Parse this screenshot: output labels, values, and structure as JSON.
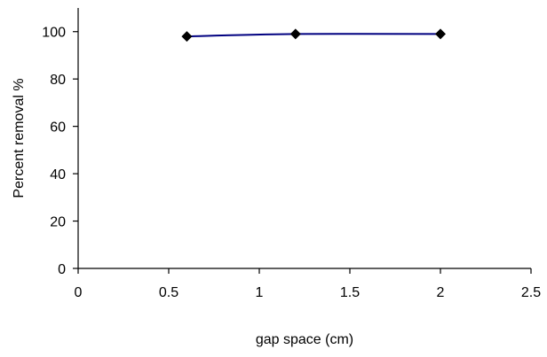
{
  "chart_data": {
    "type": "line",
    "xlabel": "gap space (cm)",
    "ylabel": "Percent removal %",
    "xlim": [
      0,
      2.5
    ],
    "ylim": [
      0,
      110
    ],
    "xticks": [
      0,
      0.5,
      1,
      1.5,
      2,
      2.5
    ],
    "yticks": [
      0,
      20,
      40,
      60,
      80,
      100
    ],
    "xtick_labels": [
      "0",
      "0.5",
      "1",
      "1.5",
      "2",
      "2.5"
    ],
    "ytick_labels": [
      "0",
      "20",
      "40",
      "60",
      "80",
      "100"
    ],
    "grid": false,
    "legend": false,
    "series": [
      {
        "x": [
          0.6,
          1.2,
          2.0
        ],
        "y": [
          98,
          99,
          99
        ],
        "marker": "diamond",
        "line_color": "#000080",
        "marker_color": "#000000"
      }
    ]
  }
}
